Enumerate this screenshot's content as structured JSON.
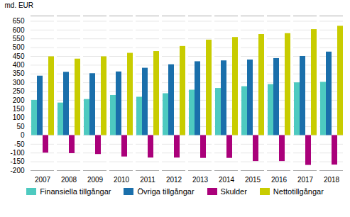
{
  "chart_data": {
    "type": "bar",
    "categories": [
      "2007",
      "2008",
      "2009",
      "2010",
      "2011",
      "2012",
      "2013",
      "2014",
      "2015",
      "2016",
      "2017",
      "2018"
    ],
    "series": [
      {
        "name": "Finansiella tillgångar",
        "color": "#4ecac0",
        "values": [
          200,
          185,
          205,
          228,
          218,
          238,
          258,
          268,
          278,
          290,
          300,
          303
        ]
      },
      {
        "name": "Övriga tillgångar",
        "color": "#1a6fab",
        "values": [
          338,
          360,
          352,
          362,
          383,
          403,
          420,
          425,
          430,
          438,
          450,
          475
        ]
      },
      {
        "name": "Skulder",
        "color": "#aa007a",
        "values": [
          -100,
          -103,
          -108,
          -122,
          -128,
          -128,
          -130,
          -130,
          -148,
          -148,
          -170,
          -168
        ]
      },
      {
        "name": "Nettotillgångar",
        "color": "#c8cc00",
        "values": [
          448,
          435,
          448,
          468,
          478,
          507,
          543,
          558,
          575,
          580,
          603,
          622
        ]
      }
    ],
    "y_label": "md. EUR",
    "ylim": [
      -200,
      680
    ],
    "yticks": [
      -200,
      -150,
      -100,
      -50,
      0,
      50,
      100,
      150,
      200,
      250,
      300,
      350,
      400,
      450,
      500,
      550,
      600,
      650
    ],
    "grid": true,
    "legend": "bottom"
  }
}
